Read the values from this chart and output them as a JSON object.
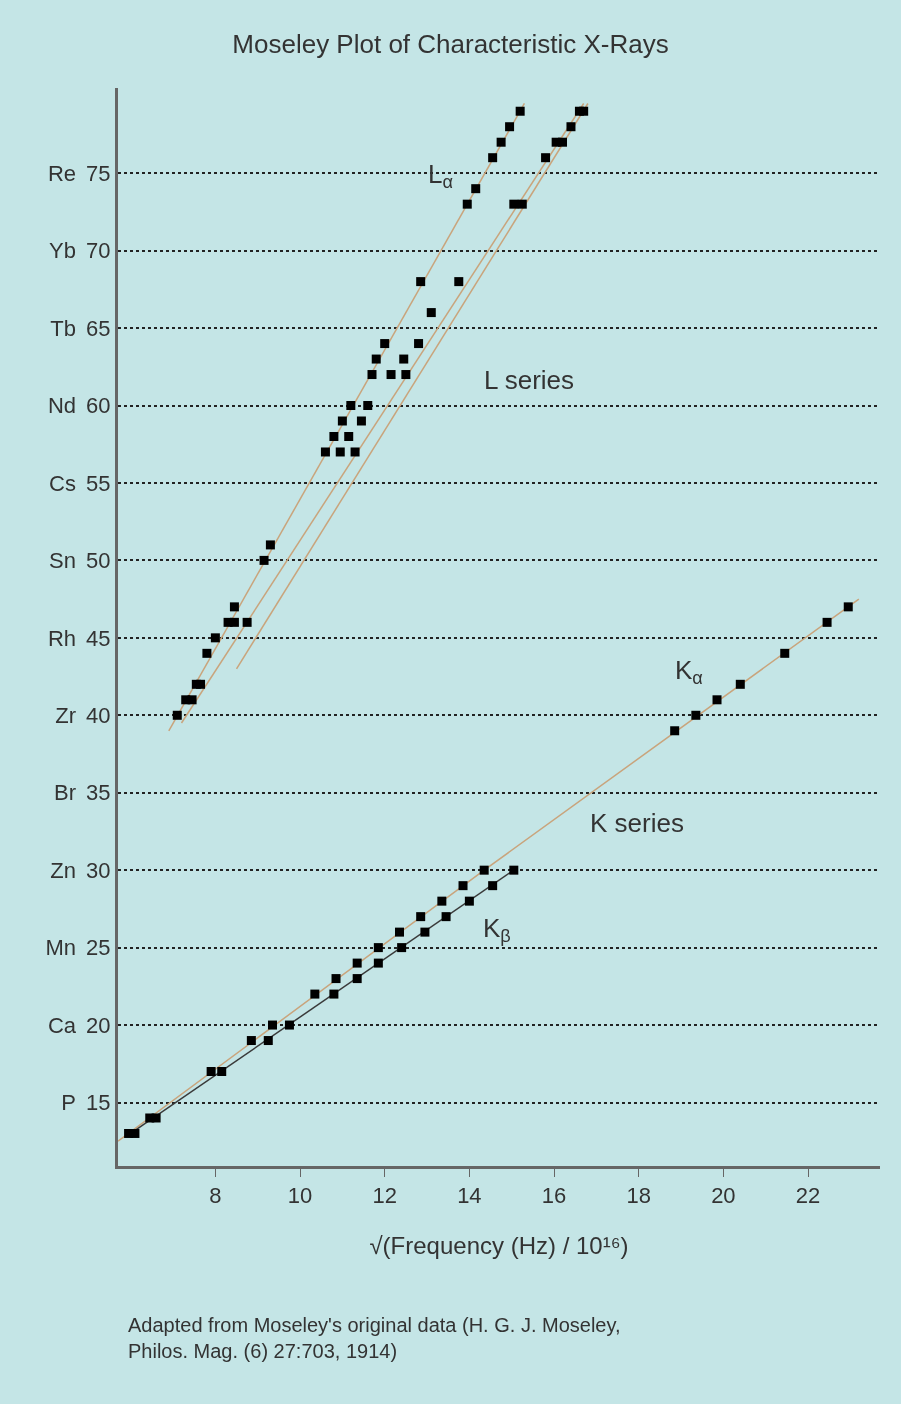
{
  "chart_data": {
    "type": "scatter",
    "title": "Moseley Plot of Characteristic X-Rays",
    "xlabel": "√(Frequency (Hz) / 10¹⁶)",
    "xlim": [
      5.7,
      23.7
    ],
    "xticks": [
      8,
      10,
      12,
      14,
      16,
      18,
      20,
      22
    ],
    "ylim": [
      10.9,
      80.5
    ],
    "yticks": [
      15,
      20,
      25,
      30,
      35,
      40,
      45,
      50,
      55,
      60,
      65,
      70,
      75
    ],
    "y2_categories": [
      "Re",
      "Yb",
      "Tb",
      "Nd",
      "Cs",
      "Sn",
      "Rh",
      "Zr",
      "Br",
      "Zn",
      "Mn",
      "Ca",
      "P"
    ],
    "grid": "y",
    "marker": "square",
    "line_style": "solid",
    "series": [
      {
        "type": "line",
        "marker": "none",
        "color": "#c9a47c",
        "x": [
          5.7,
          14.35,
          23.2
        ],
        "values": [
          12.5,
          30,
          47.5
        ]
      },
      {
        "type": "line",
        "marker": "none",
        "color": "#3a3a3a",
        "x": [
          6.0,
          15.1
        ],
        "values": [
          13,
          30.1
        ]
      },
      {
        "type": "line",
        "marker": "none",
        "color": "#c9a47c",
        "x": [
          6.9,
          15.3
        ],
        "values": [
          39,
          79.5
        ]
      },
      {
        "type": "line",
        "marker": "none",
        "color": "#c9a47c",
        "x": [
          7.2,
          16.7
        ],
        "values": [
          39.5,
          79.5
        ]
      },
      {
        "type": "line",
        "marker": "none",
        "color": "#c9a47c",
        "x": [
          8.5,
          16.8
        ],
        "values": [
          43,
          79.5
        ]
      },
      {
        "type": "scatter",
        "name": "K$_{α}$",
        "color": "#000000",
        "x": [
          5.95,
          6.45,
          7.9,
          8.85,
          9.35,
          10.35,
          10.85,
          11.35,
          11.85,
          12.35,
          12.85,
          13.35,
          13.85,
          14.35,
          18.85,
          19.35,
          19.85,
          20.4,
          21.45,
          22.45,
          22.95
        ],
        "values": [
          13,
          14,
          17,
          19,
          20,
          22,
          23,
          24,
          25,
          26,
          27,
          28,
          29,
          30,
          39,
          40,
          41,
          42,
          44,
          46,
          47
        ]
      },
      {
        "type": "scatter",
        "name": "K$_{β}$",
        "color": "#000000",
        "x": [
          6.1,
          6.6,
          8.15,
          9.25,
          9.75,
          10.8,
          11.35,
          11.85,
          12.4,
          12.95,
          13.45,
          14.0,
          14.55,
          15.05
        ],
        "values": [
          13,
          14,
          17,
          19,
          20,
          22,
          23,
          24,
          25,
          26,
          27,
          28,
          29,
          30
        ]
      },
      {
        "type": "scatter",
        "name": "L$_{α}$",
        "color": "#000000",
        "x": [
          7.1,
          7.3,
          7.55,
          7.8,
          8.0,
          8.3,
          8.45,
          9.15,
          9.3,
          10.6,
          10.8,
          11.0,
          11.2,
          11.7,
          11.8,
          12.0,
          12.85,
          13.95,
          14.15,
          14.55,
          14.75,
          14.95,
          15.2
        ],
        "values": [
          40,
          41,
          42,
          44,
          45,
          46,
          47,
          50,
          51,
          57,
          58,
          59,
          60,
          62,
          63,
          64,
          68,
          73,
          74,
          76,
          77,
          78,
          79
        ]
      },
      {
        "type": "scatter",
        "color": "#000000",
        "x": [
          7.45,
          7.65,
          8.45,
          10.95,
          11.15,
          11.45,
          11.6,
          12.15,
          12.45,
          12.8,
          13.1,
          13.75,
          15.05,
          15.8,
          16.05,
          16.4,
          16.6
        ],
        "values": [
          41,
          42,
          46,
          57,
          58,
          59,
          60,
          62,
          63,
          64,
          66,
          68,
          73,
          76,
          77,
          78,
          79
        ]
      },
      {
        "type": "scatter",
        "color": "#000000",
        "x": [
          8.75,
          11.3,
          12.5,
          15.25,
          16.2,
          16.7
        ],
        "values": [
          46,
          57,
          62,
          73,
          77,
          79
        ]
      }
    ],
    "annotations": [
      "L series",
      "K series",
      "Adapted from Moseley's original data (H. G. J. Moseley, Philos. Mag. (6) 27:703, 1914)"
    ]
  }
}
